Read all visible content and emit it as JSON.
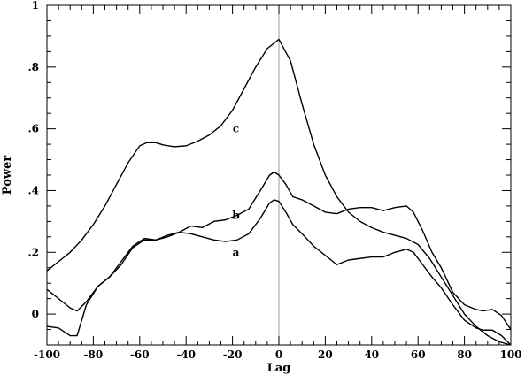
{
  "chart_data": {
    "type": "line",
    "xlabel": "Lag",
    "ylabel": "Power",
    "xlim": [
      -100,
      100
    ],
    "ylim": [
      -0.1,
      1.0
    ],
    "x_ticks": [
      -100,
      -80,
      -60,
      -40,
      -20,
      0,
      20,
      40,
      60,
      80,
      100
    ],
    "x_tick_labels": [
      "-100",
      "-80",
      "-60",
      "-40",
      "-20",
      "0",
      "20",
      "40",
      "60",
      "80",
      "100"
    ],
    "y_ticks": [
      0,
      0.2,
      0.4,
      0.6,
      0.8,
      1.0
    ],
    "y_tick_labels": [
      "0",
      ".2",
      ".4",
      ".6",
      ".8",
      "1"
    ],
    "x_minor_step": 5,
    "y_minor_step": 0.05,
    "reference_line_x": 0,
    "grid": false,
    "legend": "none",
    "series": [
      {
        "label": "a",
        "label_at": [
          -18.5,
          0.2
        ],
        "x": [
          -100,
          -95,
          -90,
          -87,
          -83,
          -78,
          -73,
          -68,
          -63,
          -58,
          -53,
          -48,
          -43,
          -38,
          -33,
          -28,
          -23,
          -18,
          -13,
          -8,
          -4,
          -2,
          0,
          3,
          6,
          10,
          15,
          20,
          25,
          30,
          35,
          40,
          45,
          50,
          55,
          58,
          62,
          66,
          70,
          75,
          80,
          85,
          88,
          92,
          96,
          100
        ],
        "y": [
          -0.04,
          -0.045,
          -0.07,
          -0.07,
          0.03,
          0.09,
          0.12,
          0.16,
          0.215,
          0.24,
          0.24,
          0.255,
          0.265,
          0.26,
          0.25,
          0.24,
          0.235,
          0.24,
          0.26,
          0.31,
          0.36,
          0.37,
          0.365,
          0.33,
          0.29,
          0.26,
          0.22,
          0.19,
          0.16,
          0.175,
          0.18,
          0.185,
          0.185,
          0.2,
          0.21,
          0.2,
          0.16,
          0.12,
          0.085,
          0.03,
          -0.02,
          -0.045,
          -0.052,
          -0.052,
          -0.07,
          -0.1
        ]
      },
      {
        "label": "b",
        "label_at": [
          -18.5,
          0.32
        ],
        "x": [
          -100,
          -95,
          -90,
          -87,
          -83,
          -78,
          -73,
          -68,
          -63,
          -58,
          -53,
          -48,
          -43,
          -38,
          -33,
          -28,
          -23,
          -18,
          -13,
          -8,
          -4,
          -2,
          0,
          3,
          6,
          10,
          15,
          20,
          25,
          30,
          35,
          40,
          45,
          50,
          55,
          58,
          62,
          66,
          70,
          75,
          80,
          85,
          88,
          92,
          96,
          100
        ],
        "y": [
          0.08,
          0.05,
          0.02,
          0.01,
          0.04,
          0.09,
          0.12,
          0.17,
          0.22,
          0.245,
          0.24,
          0.25,
          0.265,
          0.285,
          0.28,
          0.3,
          0.305,
          0.32,
          0.34,
          0.4,
          0.45,
          0.46,
          0.45,
          0.42,
          0.38,
          0.37,
          0.35,
          0.33,
          0.325,
          0.34,
          0.345,
          0.345,
          0.335,
          0.345,
          0.35,
          0.33,
          0.27,
          0.2,
          0.15,
          0.07,
          0.03,
          0.015,
          0.01,
          0.015,
          -0.005,
          -0.05
        ]
      },
      {
        "label": "c",
        "label_at": [
          -18.5,
          0.6
        ],
        "x": [
          -100,
          -95,
          -90,
          -85,
          -80,
          -75,
          -70,
          -65,
          -60,
          -57,
          -53,
          -50,
          -45,
          -40,
          -35,
          -30,
          -25,
          -20,
          -15,
          -10,
          -5,
          0,
          5,
          10,
          15,
          20,
          25,
          30,
          35,
          40,
          45,
          50,
          55,
          60,
          65,
          70,
          75,
          80,
          85,
          90,
          95,
          100
        ],
        "y": [
          0.14,
          0.17,
          0.2,
          0.24,
          0.29,
          0.35,
          0.42,
          0.49,
          0.545,
          0.555,
          0.555,
          0.548,
          0.542,
          0.545,
          0.56,
          0.58,
          0.61,
          0.66,
          0.73,
          0.8,
          0.86,
          0.89,
          0.82,
          0.68,
          0.55,
          0.45,
          0.38,
          0.33,
          0.3,
          0.28,
          0.265,
          0.255,
          0.245,
          0.225,
          0.18,
          0.12,
          0.06,
          0.0,
          -0.04,
          -0.07,
          -0.09,
          -0.1
        ]
      }
    ]
  }
}
